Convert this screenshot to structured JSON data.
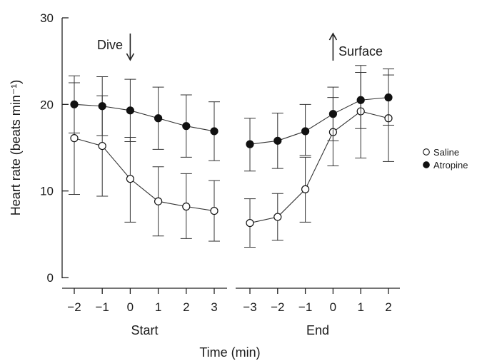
{
  "chart_data": {
    "type": "line",
    "ylabel": "Heart rate (beats min⁻¹)",
    "xlabel": "Time (min)",
    "ylim": [
      0,
      30
    ],
    "yticks": [
      0,
      10,
      20,
      30
    ],
    "grid": false,
    "legend": {
      "position": "right",
      "entries": [
        "Saline",
        "Atropine"
      ]
    },
    "annotations": {
      "dive": "Dive",
      "surface": "Surface"
    },
    "panels": [
      {
        "label": "Start",
        "x": [
          -2,
          -1,
          0,
          1,
          2,
          3
        ],
        "xtick_labels": [
          "−2",
          "−1",
          "0",
          "1",
          "2",
          "3"
        ],
        "series": [
          {
            "name": "Saline",
            "marker": "open",
            "values": [
              16.1,
              15.2,
              11.4,
              8.8,
              8.2,
              7.7
            ],
            "err_low": [
              9.6,
              9.4,
              6.4,
              4.8,
              4.5,
              4.2
            ],
            "err_high": [
              22.5,
              21.0,
              16.2,
              12.8,
              12.0,
              11.2
            ]
          },
          {
            "name": "Atropine",
            "marker": "filled",
            "values": [
              20.0,
              19.8,
              19.3,
              18.4,
              17.5,
              16.9
            ],
            "err_low": [
              16.7,
              16.4,
              15.7,
              14.8,
              13.9,
              13.5
            ],
            "err_high": [
              23.3,
              23.2,
              22.9,
              22.0,
              21.1,
              20.3
            ]
          }
        ]
      },
      {
        "label": "End",
        "x": [
          -3,
          -2,
          -1,
          0,
          1,
          2
        ],
        "xtick_labels": [
          "−3",
          "−2",
          "−1",
          "0",
          "1",
          "2"
        ],
        "series": [
          {
            "name": "Saline",
            "marker": "open",
            "values": [
              6.3,
              7.0,
              10.2,
              16.8,
              19.2,
              18.4
            ],
            "err_low": [
              3.5,
              4.3,
              6.4,
              12.9,
              13.8,
              13.4
            ],
            "err_high": [
              9.1,
              9.7,
              13.9,
              20.8,
              23.7,
              23.4
            ]
          },
          {
            "name": "Atropine",
            "marker": "filled",
            "values": [
              15.4,
              15.8,
              16.9,
              18.9,
              20.5,
              20.8
            ],
            "err_low": [
              12.3,
              12.6,
              14.1,
              15.8,
              17.2,
              17.6
            ],
            "err_high": [
              18.4,
              19.0,
              20.0,
              22.0,
              24.5,
              24.1
            ]
          }
        ]
      }
    ]
  }
}
